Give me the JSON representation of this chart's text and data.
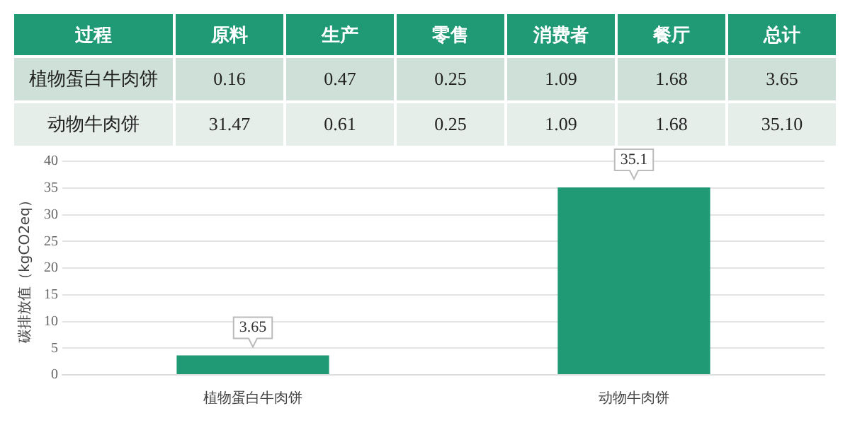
{
  "chart_data": [
    {
      "type": "other",
      "ylabel": "过程",
      "categories": [
        "原料",
        "生产",
        "零售",
        "消费者",
        "餐厅",
        "总计"
      ],
      "y_categories": [
        "植物蛋白牛肉饼",
        "动物牛肉饼"
      ],
      "cell_labels": [
        [
          "0.16",
          "0.47",
          "0.25",
          "1.09",
          "1.68",
          "3.65"
        ],
        [
          "31.47",
          "0.61",
          "0.25",
          "1.09",
          "1.68",
          "35.10"
        ]
      ]
    },
    {
      "type": "bar",
      "categories": [
        "植物蛋白牛肉饼",
        "动物牛肉饼"
      ],
      "values": [
        3.65,
        35.1
      ],
      "color": "#1f9a74",
      "ylabel": "碳排放值（kgCO2eq）",
      "ylim": [
        0,
        40
      ],
      "yticks": [
        0,
        5,
        10,
        15,
        20,
        25,
        30,
        35,
        40
      ],
      "grid": "y",
      "data_labels": true
    }
  ]
}
